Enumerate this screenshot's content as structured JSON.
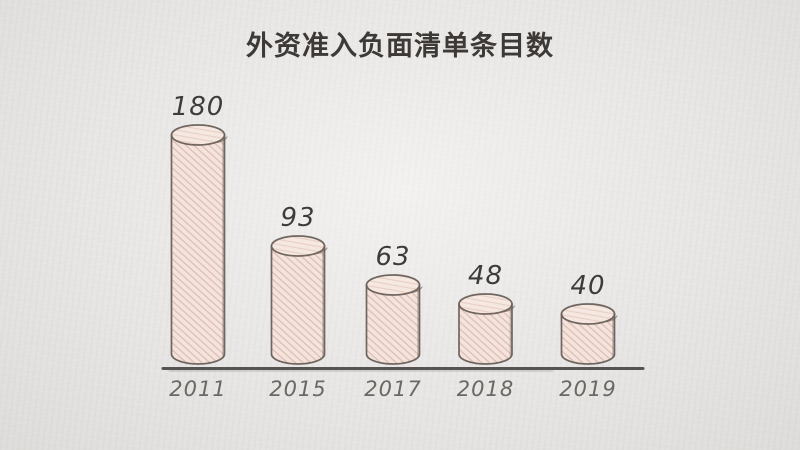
{
  "title": "外资准入负面清单条目数",
  "chart_data": {
    "type": "bar",
    "title": "外资准入负面清单条目数",
    "categories": [
      "2011",
      "2015",
      "2017",
      "2018",
      "2019"
    ],
    "values": [
      180,
      93,
      63,
      48,
      40
    ],
    "xlabel": "",
    "ylabel": "",
    "ylim": [
      0,
      200
    ],
    "grid": false,
    "legend": "none",
    "data_labels_shown": true,
    "bar_style": "hand-drawn cylinder with pink crosshatch fill on paper background"
  },
  "colors": {
    "background": "#e9e7e5",
    "bar_fill": "#f5e4dd",
    "bar_hatch": "#dfbdb1",
    "bar_top_fill": "#f6e9e2",
    "bar_top_hatch": "#e9cdc2",
    "outline": "#6a605a",
    "axis": "#4b4744",
    "title_text": "#3c3936",
    "value_text": "#3e3b38",
    "tick_text": "#6b6763"
  }
}
